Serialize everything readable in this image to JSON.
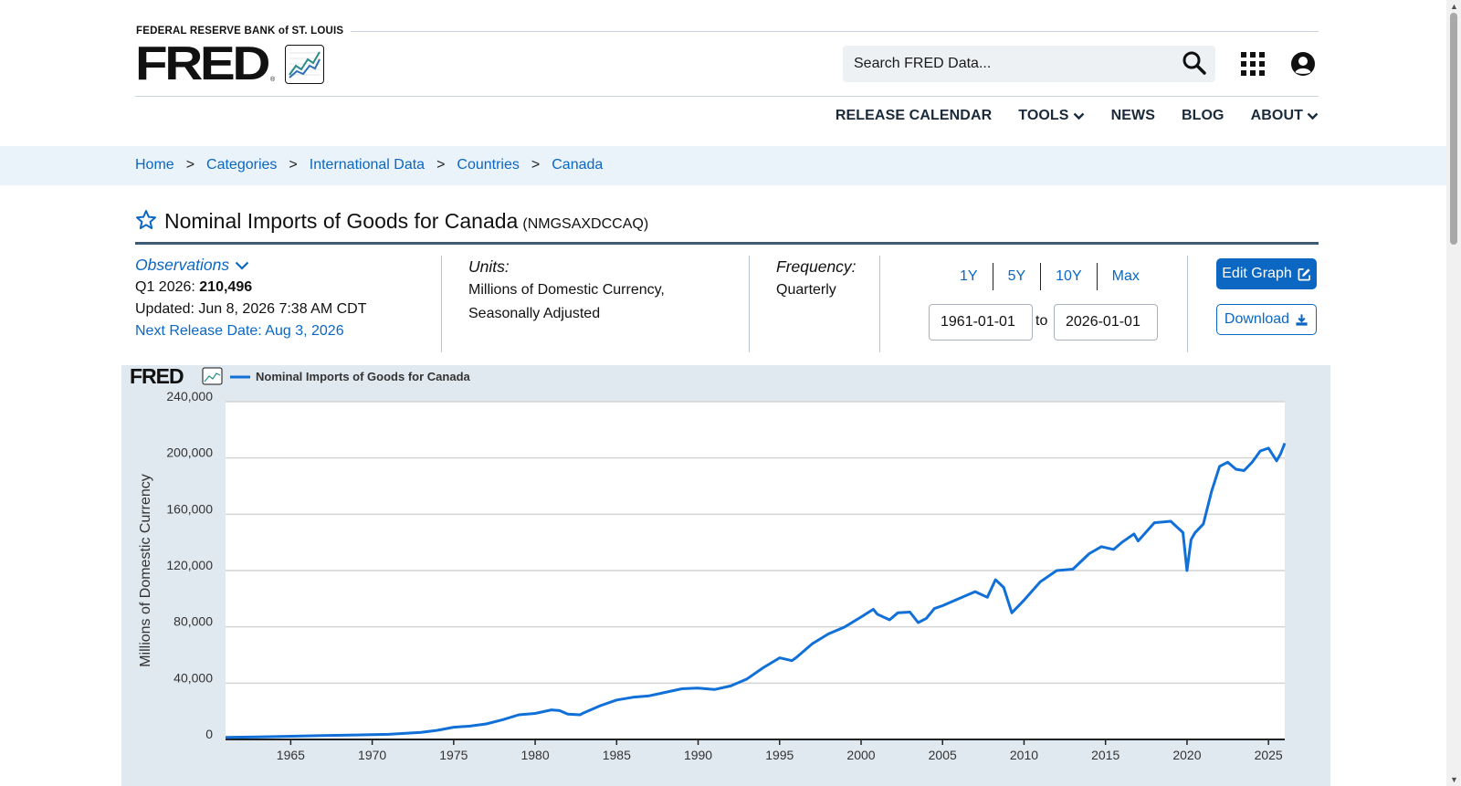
{
  "header": {
    "org_name": "FEDERAL RESERVE BANK of ST. LOUIS",
    "logo_text": "FRED",
    "logo_reg": "®",
    "search_placeholder": "Search FRED Data...",
    "icons": {
      "search": "search-icon",
      "apps": "grid-icon",
      "account": "user-icon"
    }
  },
  "nav": {
    "items": [
      {
        "label": "RELEASE CALENDAR",
        "has_menu": false
      },
      {
        "label": "TOOLS",
        "has_menu": true
      },
      {
        "label": "NEWS",
        "has_menu": false
      },
      {
        "label": "BLOG",
        "has_menu": false
      },
      {
        "label": "ABOUT",
        "has_menu": true
      }
    ]
  },
  "breadcrumb": [
    "Home",
    "Categories",
    "International Data",
    "Countries",
    "Canada"
  ],
  "breadcrumb_sep": ">",
  "series": {
    "title": "Nominal Imports of Goods for Canada",
    "id": "(NMGSAXDCCAQ)"
  },
  "observations": {
    "toggle_label": "Observations",
    "latest_period": "Q1 2026:",
    "latest_value": "210,496",
    "updated": "Updated: Jun 8, 2026 7:38 AM CDT",
    "next_release": "Next Release Date: Aug 3, 2026"
  },
  "units": {
    "label": "Units:",
    "line1": "Millions of Domestic Currency,",
    "line2": "Seasonally Adjusted"
  },
  "frequency": {
    "label": "Frequency:",
    "value": "Quarterly"
  },
  "range": {
    "buttons": [
      "1Y",
      "5Y",
      "10Y",
      "Max"
    ],
    "start": "1961-01-01",
    "to_label": "to",
    "end": "2026-01-01"
  },
  "actions": {
    "edit_label": "Edit Graph",
    "download_label": "Download"
  },
  "colors": {
    "accent": "#0b67c2",
    "series": "#1170d8",
    "panel": "#e1e9f0",
    "title_rule": "#3d5a76"
  },
  "chart_data": {
    "type": "line",
    "logo_text": "FRED",
    "legend": "Nominal Imports of Goods for Canada",
    "ylabel": "Millions of Domestic Currency",
    "xlabel": "",
    "ylim": [
      0,
      240000
    ],
    "xlim": [
      1961.0,
      2026.0
    ],
    "yticks": [
      0,
      40000,
      80000,
      120000,
      160000,
      200000,
      240000
    ],
    "ytick_labels": [
      "0",
      "40,000",
      "80,000",
      "120,000",
      "160,000",
      "200,000",
      "240,000"
    ],
    "xticks": [
      1965,
      1970,
      1975,
      1980,
      1985,
      1990,
      1995,
      2000,
      2005,
      2010,
      2015,
      2020,
      2025
    ],
    "xtick_labels": [
      "1965",
      "1970",
      "1975",
      "1980",
      "1985",
      "1990",
      "1995",
      "2000",
      "2005",
      "2010",
      "2015",
      "2020",
      "2025"
    ],
    "grid": true,
    "series": [
      {
        "name": "Nominal Imports of Goods for Canada",
        "x": [
          1961.0,
          1963.0,
          1965.0,
          1967.0,
          1969.0,
          1971.0,
          1973.0,
          1974.0,
          1975.0,
          1976.0,
          1977.0,
          1978.0,
          1979.0,
          1980.0,
          1981.0,
          1981.5,
          1982.0,
          1982.75,
          1983.0,
          1984.0,
          1985.0,
          1986.0,
          1987.0,
          1988.0,
          1989.0,
          1990.0,
          1991.0,
          1992.0,
          1993.0,
          1994.0,
          1995.0,
          1995.75,
          1996.0,
          1997.0,
          1998.0,
          1999.0,
          2000.0,
          2000.75,
          2001.0,
          2001.75,
          2002.25,
          2003.0,
          2003.5,
          2004.0,
          2004.5,
          2005.0,
          2006.0,
          2007.0,
          2007.75,
          2008.25,
          2008.75,
          2009.25,
          2010.0,
          2011.0,
          2012.0,
          2013.0,
          2014.0,
          2014.75,
          2015.5,
          2016.0,
          2016.75,
          2017.0,
          2018.0,
          2019.0,
          2019.75,
          2020.0,
          2020.25,
          2020.5,
          2021.0,
          2021.5,
          2022.0,
          2022.5,
          2023.0,
          2023.5,
          2024.0,
          2024.5,
          2025.0,
          2025.5,
          2025.75,
          2026.0
        ],
        "y": [
          1500,
          1800,
          2300,
          2700,
          3200,
          3600,
          5000,
          6500,
          8700,
          9500,
          11000,
          14000,
          17500,
          18500,
          21000,
          20500,
          18000,
          17500,
          19000,
          24000,
          28000,
          30000,
          31000,
          33500,
          36000,
          36500,
          35500,
          38000,
          43000,
          51000,
          58000,
          56000,
          58000,
          68000,
          75000,
          80000,
          87000,
          92500,
          89000,
          85000,
          90000,
          90500,
          83000,
          86000,
          93000,
          95000,
          100000,
          105000,
          101000,
          113500,
          108000,
          90000,
          99000,
          112000,
          120000,
          121000,
          132000,
          137000,
          135000,
          140000,
          146000,
          141000,
          154000,
          155000,
          147000,
          120000,
          142000,
          147000,
          153000,
          176000,
          194000,
          197000,
          192000,
          191000,
          197000,
          205000,
          207000,
          198000,
          203000,
          210496
        ]
      }
    ]
  }
}
